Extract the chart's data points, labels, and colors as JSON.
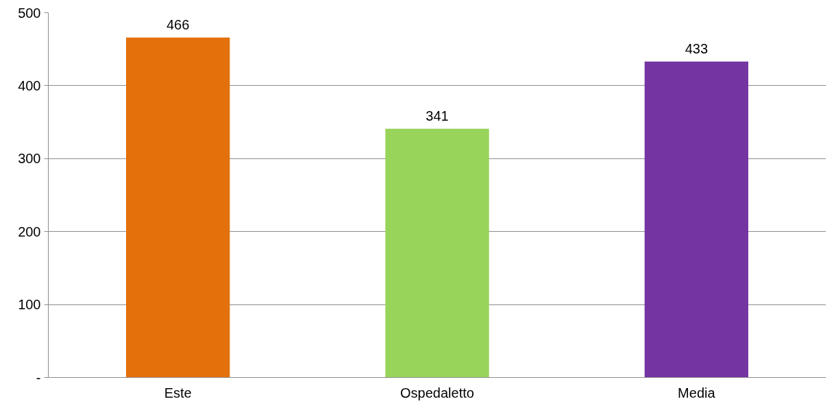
{
  "chart_data": {
    "type": "bar",
    "categories": [
      "Este",
      "Ospedaletto",
      "Media"
    ],
    "values": [
      466,
      341,
      433
    ],
    "colors": [
      "#e3700b",
      "#98d45a",
      "#7435a3"
    ],
    "ylim": [
      0,
      500
    ],
    "yticks": [
      {
        "value": 0,
        "label": "-"
      },
      100,
      200,
      300,
      400,
      500
    ],
    "grid": "y",
    "data_labels": true
  }
}
